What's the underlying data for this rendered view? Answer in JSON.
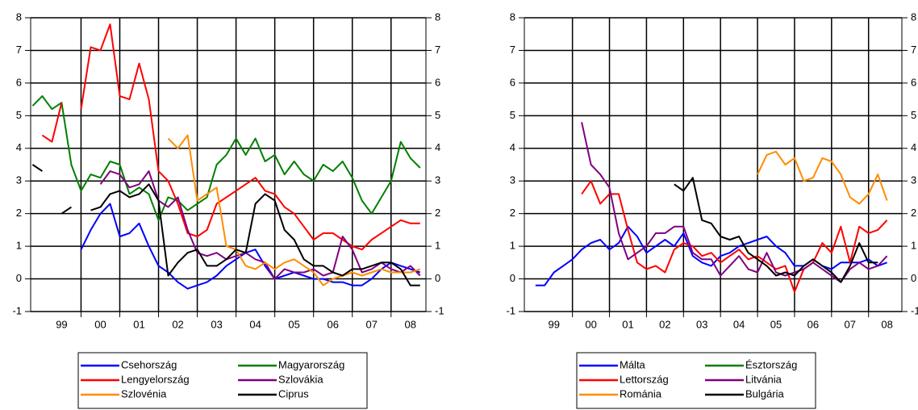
{
  "chart_data": [
    {
      "type": "line",
      "x": [
        1998.75,
        1999,
        1999.25,
        1999.5,
        1999.75,
        2000,
        2000.25,
        2000.5,
        2000.75,
        2001,
        2001.25,
        2001.5,
        2001.75,
        2002,
        2002.25,
        2002.5,
        2002.75,
        2003,
        2003.25,
        2003.5,
        2003.75,
        2004,
        2004.25,
        2004.5,
        2004.75,
        2005,
        2005.25,
        2005.5,
        2005.75,
        2006,
        2006.25,
        2006.5,
        2006.75,
        2007,
        2007.25,
        2007.5,
        2007.75,
        2008,
        2008.25,
        2008.5,
        2008.75
      ],
      "xlim": [
        1998.7,
        2008.9
      ],
      "xticks": [
        {
          "value": 1999.5,
          "label": "99"
        },
        {
          "value": 2000.5,
          "label": "00"
        },
        {
          "value": 2001.5,
          "label": "01"
        },
        {
          "value": 2002.5,
          "label": "02"
        },
        {
          "value": 2003.5,
          "label": "03"
        },
        {
          "value": 2004.5,
          "label": "04"
        },
        {
          "value": 2005.5,
          "label": "05"
        },
        {
          "value": 2006.5,
          "label": "06"
        },
        {
          "value": 2007.5,
          "label": "07"
        },
        {
          "value": 2008.5,
          "label": "08"
        }
      ],
      "xgrid": [
        2000,
        2001,
        2002,
        2003,
        2004,
        2005,
        2006,
        2007,
        2008
      ],
      "ylim": [
        -1,
        8
      ],
      "yticks": [
        -1,
        0,
        1,
        2,
        3,
        4,
        5,
        6,
        7,
        8
      ],
      "series": [
        {
          "name": "Csehország",
          "color": "#0000ff",
          "values": [
            null,
            null,
            null,
            null,
            null,
            0.9,
            1.5,
            2.0,
            2.3,
            1.3,
            1.4,
            1.7,
            1.0,
            0.4,
            0.2,
            -0.1,
            -0.3,
            -0.2,
            -0.1,
            0.1,
            0.4,
            0.6,
            0.8,
            0.9,
            0.4,
            0.0,
            0.1,
            0.2,
            0.1,
            0.0,
            0.0,
            -0.1,
            -0.1,
            -0.2,
            -0.2,
            0.0,
            0.3,
            0.5,
            0.4,
            0.3,
            0.2
          ]
        },
        {
          "name": "Magyarország",
          "color": "#008000",
          "values": [
            5.3,
            5.6,
            5.2,
            5.4,
            3.5,
            2.7,
            3.2,
            3.1,
            3.6,
            3.5,
            2.6,
            2.8,
            2.6,
            1.8,
            2.5,
            2.4,
            2.1,
            2.3,
            2.5,
            3.5,
            3.8,
            4.3,
            3.8,
            4.3,
            3.6,
            3.8,
            3.2,
            3.6,
            3.2,
            3.0,
            3.5,
            3.3,
            3.6,
            3.1,
            2.4,
            2.0,
            2.5,
            3.0,
            4.2,
            3.7,
            3.4
          ]
        },
        {
          "name": "Lengyelország",
          "color": "#ff0000",
          "values": [
            null,
            4.4,
            4.2,
            5.4,
            null,
            5.2,
            7.1,
            7.0,
            7.8,
            5.6,
            5.5,
            6.6,
            5.5,
            3.3,
            3.0,
            2.3,
            1.4,
            1.3,
            1.5,
            2.3,
            2.5,
            2.7,
            2.9,
            3.1,
            2.7,
            2.6,
            2.2,
            2.0,
            1.6,
            1.2,
            1.4,
            1.4,
            1.2,
            1.0,
            0.9,
            1.2,
            1.4,
            1.6,
            1.8,
            1.7,
            1.7
          ]
        },
        {
          "name": "Szlovákia",
          "color": "#800080",
          "values": [
            null,
            null,
            null,
            null,
            null,
            null,
            null,
            2.9,
            3.3,
            3.2,
            2.8,
            2.9,
            3.3,
            2.4,
            2.2,
            2.5,
            1.5,
            0.8,
            0.7,
            0.8,
            0.6,
            0.7,
            0.8,
            0.6,
            0.5,
            0.0,
            0.3,
            0.2,
            0.2,
            0.3,
            0.1,
            0.2,
            1.3,
            0.9,
            0.2,
            0.3,
            0.5,
            0.3,
            0.2,
            0.4,
            0.1
          ]
        },
        {
          "name": "Szlovénia",
          "color": "#ff8c00",
          "values": [
            null,
            null,
            null,
            null,
            null,
            null,
            null,
            null,
            null,
            null,
            null,
            null,
            null,
            null,
            4.3,
            4.0,
            4.4,
            2.4,
            2.6,
            2.8,
            1.0,
            0.9,
            0.4,
            0.3,
            0.5,
            0.3,
            0.5,
            0.6,
            0.4,
            0.2,
            -0.2,
            0.0,
            0.1,
            0.2,
            0.1,
            0.2,
            0.3,
            0.2,
            0.2,
            0.2,
            0.3
          ]
        },
        {
          "name": "Ciprus",
          "color": "#000000",
          "values": [
            3.5,
            3.3,
            null,
            2.0,
            2.2,
            null,
            2.1,
            2.2,
            2.6,
            2.7,
            2.5,
            2.6,
            2.9,
            2.4,
            0.1,
            0.5,
            0.8,
            0.9,
            0.4,
            0.4,
            0.6,
            0.9,
            0.8,
            2.3,
            2.6,
            2.4,
            1.5,
            1.2,
            0.6,
            0.4,
            0.4,
            0.2,
            0.1,
            0.3,
            0.3,
            0.4,
            0.5,
            0.5,
            0.3,
            -0.2,
            -0.2
          ]
        }
      ]
    },
    {
      "type": "line",
      "x": [
        1998.75,
        1999,
        1999.25,
        1999.5,
        1999.75,
        2000,
        2000.25,
        2000.5,
        2000.75,
        2001,
        2001.25,
        2001.5,
        2001.75,
        2002,
        2002.25,
        2002.5,
        2002.75,
        2003,
        2003.25,
        2003.5,
        2003.75,
        2004,
        2004.25,
        2004.5,
        2004.75,
        2005,
        2005.25,
        2005.5,
        2005.75,
        2006,
        2006.25,
        2006.5,
        2006.75,
        2007,
        2007.25,
        2007.5,
        2007.75,
        2008,
        2008.25,
        2008.5,
        2008.75
      ],
      "xlim": [
        1998.7,
        2008.9
      ],
      "xticks": [
        {
          "value": 1999.5,
          "label": "99"
        },
        {
          "value": 2000.5,
          "label": "00"
        },
        {
          "value": 2001.5,
          "label": "01"
        },
        {
          "value": 2002.5,
          "label": "02"
        },
        {
          "value": 2003.5,
          "label": "03"
        },
        {
          "value": 2004.5,
          "label": "04"
        },
        {
          "value": 2005.5,
          "label": "05"
        },
        {
          "value": 2006.5,
          "label": "06"
        },
        {
          "value": 2007.5,
          "label": "07"
        },
        {
          "value": 2008.5,
          "label": "08"
        }
      ],
      "xgrid": [
        2000,
        2001,
        2002,
        2003,
        2004,
        2005,
        2006,
        2007,
        2008
      ],
      "ylim": [
        -1,
        8
      ],
      "yticks": [
        -1,
        0,
        1,
        2,
        3,
        4,
        5,
        6,
        7,
        8
      ],
      "series": [
        {
          "name": "Málta",
          "color": "#0000ff",
          "values": [
            null,
            -0.2,
            -0.2,
            0.2,
            0.4,
            0.6,
            0.9,
            1.1,
            1.2,
            0.9,
            1.1,
            1.6,
            1.3,
            0.8,
            1.0,
            1.2,
            1.0,
            1.4,
            0.7,
            0.5,
            0.4,
            0.7,
            0.8,
            1.0,
            1.1,
            1.2,
            1.3,
            1.0,
            0.8,
            0.4,
            0.4,
            0.6,
            0.4,
            0.3,
            0.5,
            0.5,
            0.5,
            0.6,
            0.4,
            0.5,
            null
          ]
        },
        {
          "name": "Észtország",
          "color": "#008000",
          "values": [
            null,
            null,
            null,
            null,
            null,
            null,
            null,
            null,
            null,
            null,
            null,
            null,
            null,
            null,
            null,
            null,
            null,
            null,
            null,
            null,
            null,
            null,
            null,
            null,
            null,
            null,
            null,
            null,
            null,
            null,
            null,
            null,
            null,
            null,
            null,
            null,
            null,
            null,
            null,
            null,
            null
          ]
        },
        {
          "name": "Lettország",
          "color": "#ff0000",
          "values": [
            null,
            null,
            null,
            null,
            null,
            null,
            2.6,
            3.0,
            2.3,
            2.6,
            2.6,
            1.5,
            0.5,
            0.3,
            0.4,
            0.2,
            0.9,
            1.1,
            1.0,
            0.7,
            0.8,
            0.5,
            0.7,
            0.9,
            0.6,
            0.7,
            0.5,
            0.3,
            0.4,
            -0.4,
            0.3,
            0.5,
            1.1,
            0.8,
            1.6,
            0.5,
            1.6,
            1.4,
            1.5,
            1.8,
            null
          ]
        },
        {
          "name": "Litvánia",
          "color": "#800080",
          "values": [
            null,
            null,
            null,
            null,
            null,
            null,
            4.8,
            3.5,
            3.2,
            2.8,
            1.4,
            0.6,
            0.8,
            1.0,
            1.4,
            1.4,
            1.6,
            1.6,
            0.8,
            0.6,
            0.6,
            0.1,
            0.4,
            0.7,
            0.3,
            0.2,
            0.8,
            0.2,
            0.1,
            0.2,
            0.3,
            0.5,
            0.3,
            0.1,
            -0.1,
            0.3,
            0.5,
            0.3,
            0.4,
            0.7,
            null
          ]
        },
        {
          "name": "Románia",
          "color": "#ff8c00",
          "values": [
            null,
            null,
            null,
            null,
            null,
            null,
            null,
            null,
            null,
            null,
            null,
            null,
            null,
            null,
            null,
            null,
            null,
            null,
            null,
            null,
            null,
            null,
            null,
            null,
            null,
            3.2,
            3.8,
            3.9,
            3.5,
            3.7,
            3.0,
            3.1,
            3.7,
            3.6,
            3.2,
            2.5,
            2.3,
            2.6,
            3.2,
            2.4,
            null
          ]
        },
        {
          "name": "Bulgária",
          "color": "#000000",
          "values": [
            null,
            null,
            null,
            null,
            null,
            null,
            null,
            null,
            null,
            null,
            null,
            null,
            null,
            null,
            null,
            null,
            2.9,
            2.7,
            3.1,
            1.8,
            1.7,
            1.3,
            1.2,
            1.3,
            0.8,
            0.6,
            0.4,
            0.1,
            0.2,
            0.1,
            0.4,
            0.6,
            0.4,
            0.2,
            -0.1,
            0.4,
            1.1,
            0.5,
            0.5,
            null,
            null
          ]
        }
      ]
    }
  ]
}
